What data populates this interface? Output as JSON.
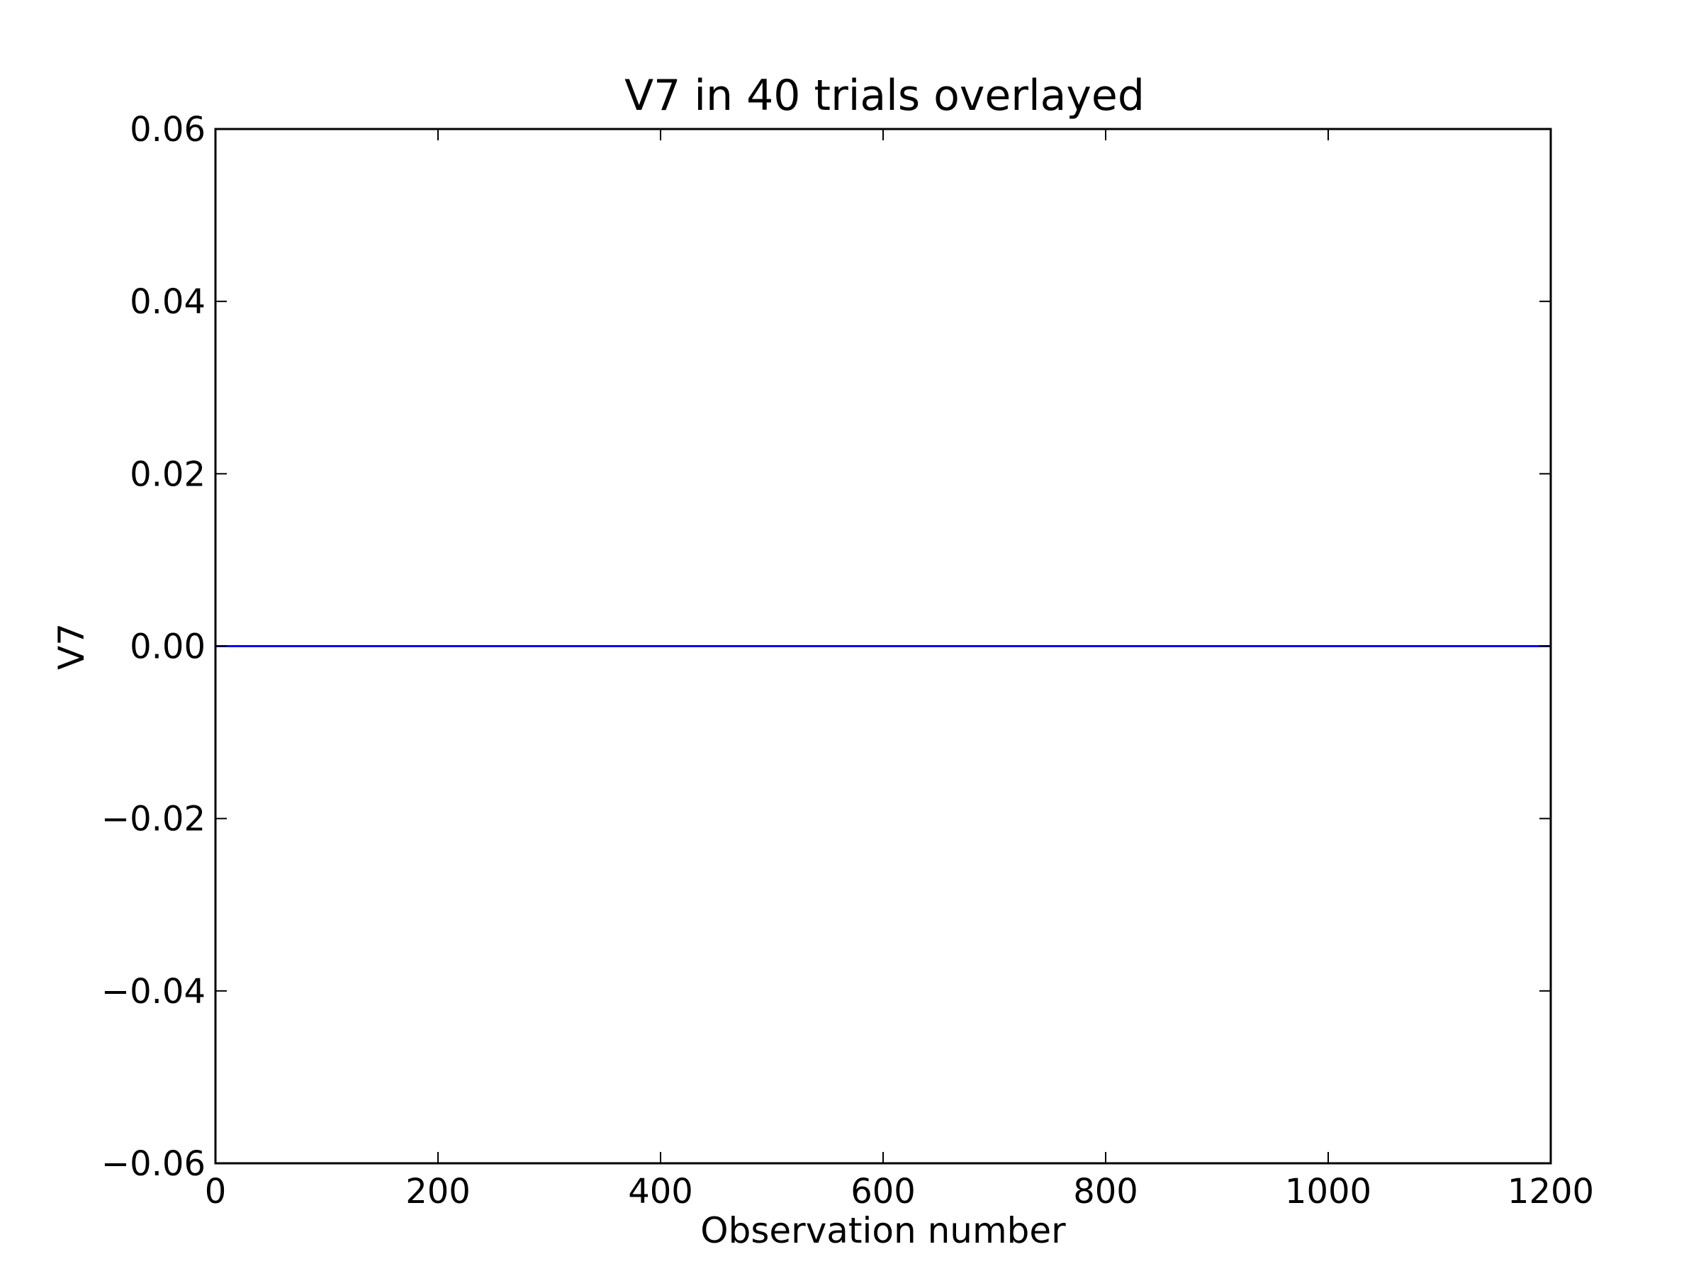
{
  "chart_data": {
    "type": "line",
    "title": "V7 in 40 trials overlayed",
    "xlabel": "Observation number",
    "ylabel": "V7",
    "xlim": [
      0,
      1200
    ],
    "ylim": [
      -0.06,
      0.06
    ],
    "xticks": [
      0,
      200,
      400,
      600,
      800,
      1000,
      1200
    ],
    "xtick_labels": [
      "0",
      "200",
      "400",
      "600",
      "800",
      "1000",
      "1200"
    ],
    "yticks": [
      -0.06,
      -0.04,
      -0.02,
      0.0,
      0.02,
      0.04,
      0.06
    ],
    "ytick_labels": [
      "−0.06",
      "−0.04",
      "−0.02",
      "0.00",
      "0.02",
      "0.04",
      "0.06"
    ],
    "grid": false,
    "series": [
      {
        "color": "#0000ff",
        "x": [
          0,
          1200
        ],
        "y": [
          0,
          0
        ]
      }
    ]
  }
}
